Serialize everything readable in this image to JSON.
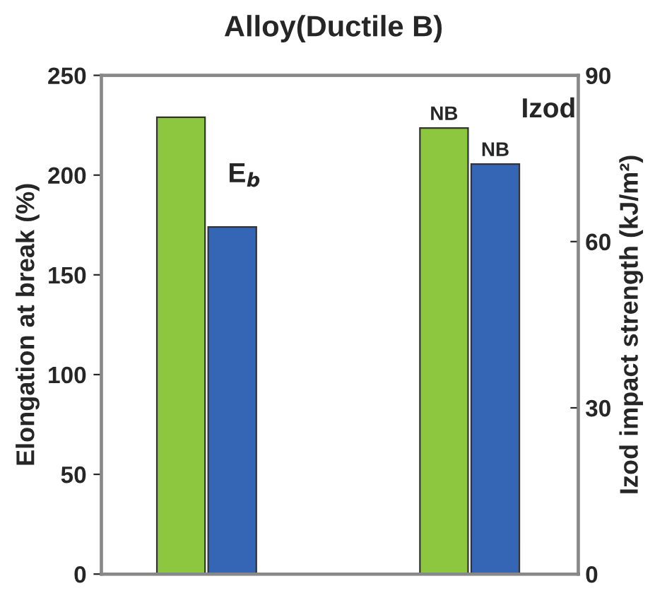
{
  "chart_data": {
    "type": "bar",
    "title": "Alloy(Ductile B)",
    "ylabel": "Elongation at break (%)",
    "y2label": "Izod impact strength (kJ/m²)",
    "categories": [
      null,
      null
    ],
    "series": [
      {
        "color": "#8dc63f",
        "values": [
          229,
          null
        ],
        "axis": "y"
      },
      {
        "color": "#3566b5",
        "values": [
          174,
          null
        ],
        "axis": "y"
      },
      {
        "color": "#8dc63f",
        "values": [
          null,
          80.5
        ],
        "axis": "y2",
        "value_labels": [
          null,
          "NB"
        ]
      },
      {
        "color": "#3566b5",
        "values": [
          null,
          74
        ],
        "axis": "y2",
        "value_labels": [
          null,
          "NB"
        ]
      }
    ],
    "ylim": [
      0,
      250
    ],
    "yticks": [
      0,
      50,
      100,
      150,
      200,
      250
    ],
    "y2lim": [
      0,
      90
    ],
    "y2ticks": [
      0,
      30,
      60,
      90
    ],
    "annotations": [
      "E$_{b}$",
      "Izod"
    ],
    "grid": false,
    "legend": false
  }
}
